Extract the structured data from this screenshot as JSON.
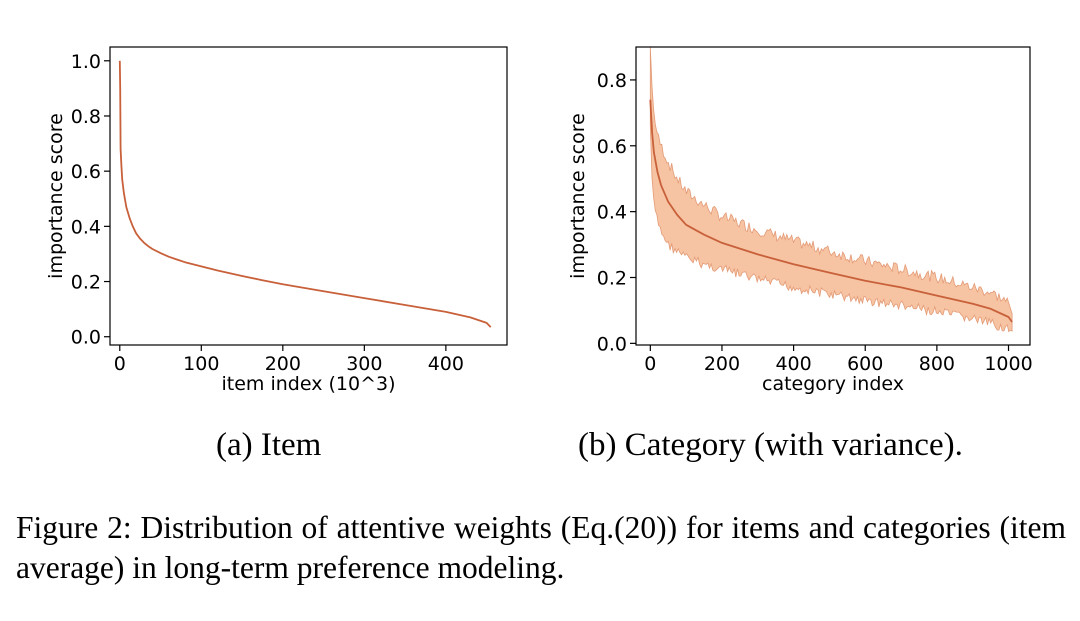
{
  "chart_data": [
    {
      "type": "line",
      "xlabel": "item index (10^3)",
      "ylabel": "importance score",
      "xlim": [
        -12,
        475
      ],
      "ylim": [
        -0.03,
        1.05
      ],
      "xticks": [
        0,
        100,
        200,
        300,
        400
      ],
      "yticks": [
        0.0,
        0.2,
        0.4,
        0.6,
        0.8,
        1.0
      ],
      "ytick_labels": [
        "0.0",
        "0.2",
        "0.4",
        "0.6",
        "0.8",
        "1.0"
      ],
      "grid": false,
      "color": "#c8603a",
      "x": [
        0,
        0.5,
        1,
        2,
        3,
        5,
        8,
        12,
        16,
        20,
        25,
        30,
        35,
        40,
        50,
        60,
        70,
        80,
        100,
        120,
        150,
        175,
        200,
        250,
        300,
        350,
        400,
        430,
        450,
        455
      ],
      "y": [
        1.0,
        0.9,
        0.68,
        0.62,
        0.57,
        0.52,
        0.47,
        0.43,
        0.4,
        0.375,
        0.355,
        0.34,
        0.328,
        0.318,
        0.303,
        0.29,
        0.28,
        0.27,
        0.255,
        0.24,
        0.22,
        0.205,
        0.19,
        0.165,
        0.14,
        0.115,
        0.09,
        0.07,
        0.05,
        0.035
      ]
    },
    {
      "type": "area",
      "xlabel": "category index",
      "ylabel": "importance score",
      "xlim": [
        -40,
        1060
      ],
      "ylim": [
        -0.005,
        0.9
      ],
      "xticks": [
        0,
        200,
        400,
        600,
        800,
        1000
      ],
      "yticks": [
        0.0,
        0.2,
        0.4,
        0.6,
        0.8
      ],
      "ytick_labels": [
        "0.0",
        "0.2",
        "0.4",
        "0.6",
        "0.8"
      ],
      "grid": false,
      "line_color": "#c8603a",
      "band_color": "#f5b993",
      "x": [
        0,
        5,
        10,
        20,
        30,
        50,
        75,
        100,
        150,
        200,
        300,
        400,
        500,
        600,
        700,
        800,
        900,
        950,
        1000,
        1010
      ],
      "y": [
        0.74,
        0.64,
        0.58,
        0.52,
        0.48,
        0.43,
        0.39,
        0.36,
        0.33,
        0.305,
        0.27,
        0.24,
        0.215,
        0.19,
        0.17,
        0.145,
        0.12,
        0.105,
        0.08,
        0.065
      ],
      "upper": [
        0.9,
        0.77,
        0.7,
        0.63,
        0.6,
        0.55,
        0.5,
        0.46,
        0.42,
        0.385,
        0.345,
        0.31,
        0.28,
        0.25,
        0.225,
        0.2,
        0.17,
        0.155,
        0.125,
        0.09
      ],
      "lower": [
        0.66,
        0.49,
        0.42,
        0.37,
        0.34,
        0.3,
        0.28,
        0.26,
        0.24,
        0.225,
        0.195,
        0.17,
        0.15,
        0.13,
        0.115,
        0.095,
        0.075,
        0.06,
        0.045,
        0.04
      ]
    }
  ],
  "captions": {
    "a": "(a) Item",
    "b": "(b) Category (with variance).",
    "figure": "Figure 2: Distribution of attentive weights (Eq.(20)) for items and categories (item average) in long-term preference modeling."
  }
}
